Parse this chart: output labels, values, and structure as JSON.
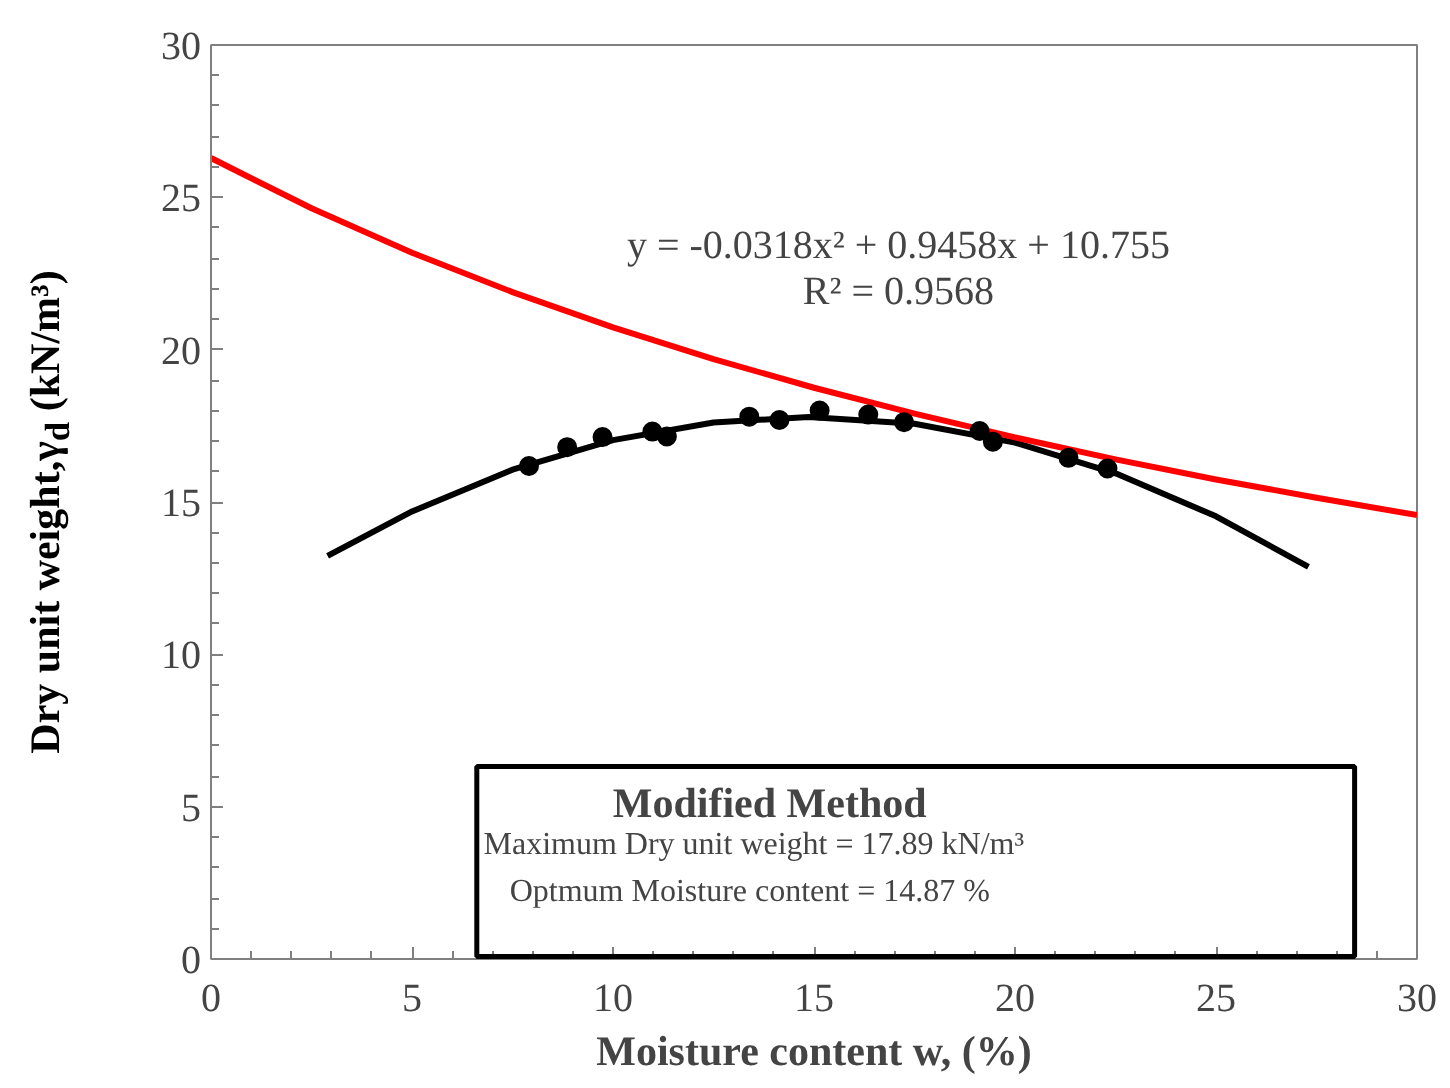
{
  "chart_data": {
    "type": "scatter",
    "xlabel": "Moisture content w, (%)",
    "ylabel": "Dry unit weight,γ$_{d}$ (kN/m³)",
    "xlim": [
      0,
      30
    ],
    "ylim": [
      0,
      30
    ],
    "xticks": [
      0,
      5,
      10,
      15,
      20,
      25,
      30
    ],
    "yticks": [
      0,
      5,
      10,
      15,
      20,
      25,
      30
    ],
    "grid": false,
    "series": [
      {
        "marker": "circle",
        "color": "#000000",
        "x": [
          7.91,
          8.86,
          9.74,
          10.98,
          11.34,
          13.39,
          14.14,
          15.14,
          16.35,
          17.24,
          19.12,
          19.45,
          21.33,
          22.3
        ],
        "values": [
          16.18,
          16.8,
          17.13,
          17.31,
          17.15,
          17.8,
          17.69,
          18.0,
          17.87,
          17.62,
          17.33,
          16.98,
          16.45,
          16.1
        ]
      },
      {
        "type": "line",
        "marker": "none",
        "color": "#000000",
        "x": [
          2.9,
          5,
          7.5,
          10,
          12.5,
          14.87,
          17.5,
          20,
          22.5,
          25,
          27.3
        ],
        "values": [
          13.23,
          14.69,
          16.06,
          17.03,
          17.61,
          17.79,
          17.57,
          16.95,
          15.94,
          14.53,
          12.87
        ]
      },
      {
        "type": "line",
        "marker": "none",
        "color": "#ff0000",
        "x": [
          0,
          2.5,
          5,
          7.5,
          10,
          12.5,
          15,
          17.5,
          20,
          22.5,
          25,
          27.5,
          30
        ],
        "values": [
          26.29,
          24.64,
          23.18,
          21.89,
          20.73,
          19.69,
          18.75,
          17.9,
          17.12,
          16.4,
          15.74,
          15.14,
          14.57
        ]
      }
    ],
    "annotations": [
      "y = -0.0318x² + 0.9458x + 10.755",
      "R² = 0.9568",
      "Modified Method",
      "Maximum Dry unit weight  =   17.89  kN/m³",
      "Optmum Moisture content =    14.87   %"
    ]
  }
}
